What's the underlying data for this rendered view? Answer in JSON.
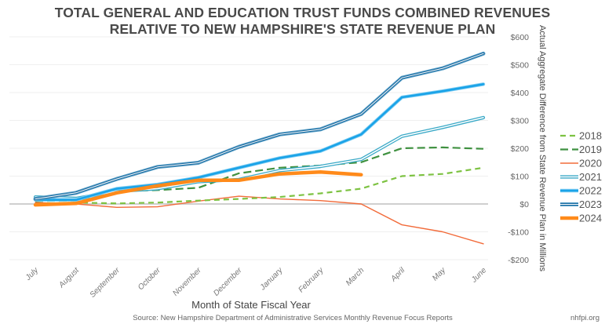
{
  "chart_data": {
    "type": "line",
    "title_line1": "TOTAL GENERAL AND EDUCATION TRUST FUNDS COMBINED REVENUES",
    "title_line2": "RELATIVE TO NEW HAMPSHIRE'S STATE REVENUE PLAN",
    "xlabel": "Month of State Fiscal Year",
    "ylabel": "Actual Aggregate Difference from State Revenue Plan in Millions",
    "source": "Source: New Hampshire Department of Administrative Services Monthly Revenue Focus Reports",
    "credit": "nhfpi.org",
    "categories": [
      "July",
      "August",
      "September",
      "October",
      "November",
      "December",
      "January",
      "February",
      "March",
      "April",
      "May",
      "June"
    ],
    "ylim": [
      -200,
      600
    ],
    "yticks": [
      600,
      500,
      400,
      300,
      200,
      100,
      0,
      -100,
      -200
    ],
    "ytick_labels": [
      "$600",
      "$500",
      "$400",
      "$300",
      "$200",
      "$100",
      "$0",
      "-$100",
      "-$200"
    ],
    "grid": true,
    "legend_position": "right",
    "series": [
      {
        "name": "2018",
        "style": "dashed-light",
        "color": "#7dc242",
        "values": [
          0,
          5,
          2,
          5,
          12,
          18,
          25,
          38,
          55,
          100,
          108,
          130
        ]
      },
      {
        "name": "2019",
        "style": "dashed-dark",
        "color": "#3f9140",
        "values": [
          10,
          12,
          45,
          50,
          58,
          110,
          130,
          138,
          150,
          200,
          203,
          198
        ]
      },
      {
        "name": "2020",
        "style": "thin",
        "color": "#f26b3a",
        "values": [
          5,
          0,
          -12,
          -10,
          10,
          28,
          18,
          12,
          0,
          -75,
          -100,
          -143
        ]
      },
      {
        "name": "2021",
        "style": "hollow",
        "color": "#3aa9c7",
        "values": [
          25,
          20,
          45,
          55,
          80,
          88,
          120,
          135,
          160,
          243,
          275,
          310
        ]
      },
      {
        "name": "2022",
        "style": "solid-double",
        "color": "#1aa3e8",
        "values": [
          15,
          15,
          55,
          70,
          95,
          130,
          165,
          190,
          250,
          383,
          405,
          430
        ]
      },
      {
        "name": "2023",
        "style": "hollow-dark",
        "color": "#1f6fa3",
        "values": [
          18,
          40,
          90,
          133,
          148,
          205,
          250,
          268,
          323,
          453,
          487,
          540
        ]
      },
      {
        "name": "2024",
        "style": "thick",
        "color": "#ff8a1a",
        "values": [
          -3,
          2,
          40,
          65,
          85,
          85,
          108,
          115,
          105,
          null,
          null,
          null
        ]
      }
    ]
  }
}
